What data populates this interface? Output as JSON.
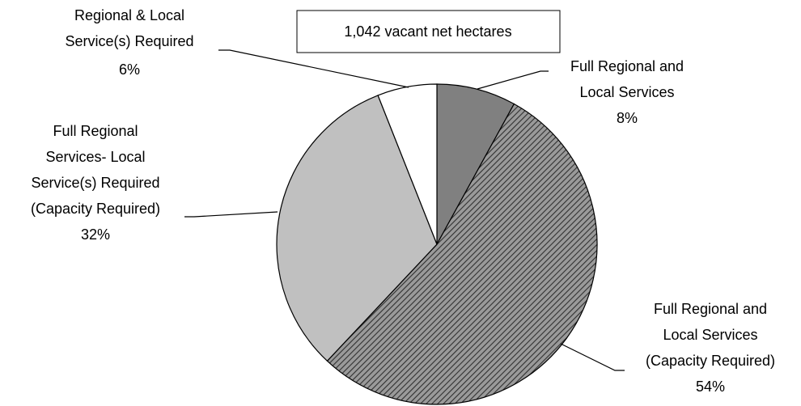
{
  "chart_data": {
    "type": "pie",
    "annotation": "1,042 vacant net hectares",
    "categories": [
      "Full Regional and\nLocal Services",
      "Full Regional and\nLocal Services\n(Capacity Required)",
      "Full Regional\nServices- Local\nService(s) Required\n(Capacity Required)",
      "Regional & Local\nService(s) Required"
    ],
    "values": [
      8,
      54,
      32,
      6
    ],
    "value_labels": [
      "8%",
      "54%",
      "32%",
      "6%"
    ],
    "colors": [
      "#808080",
      "hatch",
      "#c0c0c0",
      "#ffffff"
    ]
  }
}
